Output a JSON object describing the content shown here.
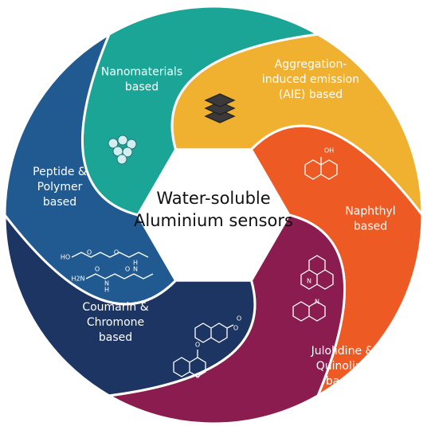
{
  "title": [
    "Water-soluble",
    "Aluminium sensors"
  ],
  "segments": [
    {
      "label": [
        "Nanomaterials",
        "based"
      ],
      "structure_labels": []
    },
    {
      "label": [
        "Aggregation-",
        "induced emission",
        "(AIE) based"
      ],
      "structure_labels": []
    },
    {
      "label": [
        "Naphthyl",
        "based"
      ],
      "structure_labels": [
        "OH"
      ]
    },
    {
      "label": [
        "Julolidine &",
        "Quinoline",
        "based"
      ],
      "structure_labels": [
        "N",
        "N"
      ]
    },
    {
      "label": [
        "Coumarin &",
        "Chromone",
        "based"
      ],
      "structure_labels": [
        "O",
        "O",
        "O",
        "O"
      ]
    },
    {
      "label": [
        "Peptide &",
        "Polymer",
        "based"
      ],
      "structure_labels": [
        "HO",
        "O",
        "O",
        "H2N",
        "O",
        "N",
        "H",
        "O",
        "H",
        "N"
      ]
    }
  ]
}
